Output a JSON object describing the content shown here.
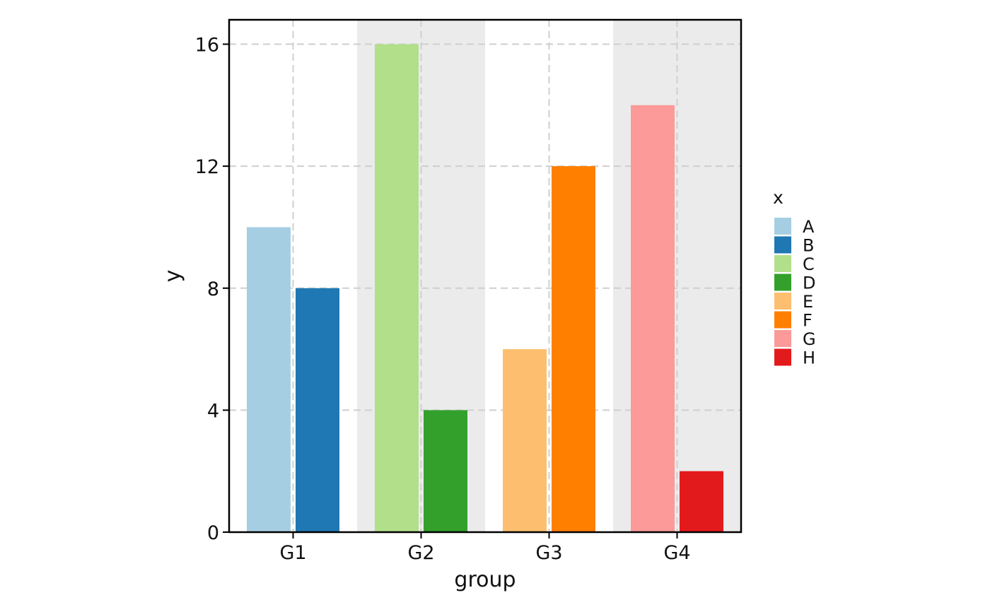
{
  "chart_data": {
    "type": "bar",
    "title": "",
    "xlabel": "group",
    "ylabel": "y",
    "ylim": [
      0,
      16.8
    ],
    "yticks": [
      0,
      4,
      8,
      12,
      16
    ],
    "grid": true,
    "legend_title": "x",
    "legend_position": "right",
    "categories": [
      "G1",
      "G2",
      "G3",
      "G4"
    ],
    "shaded_categories": [
      "G2",
      "G4"
    ],
    "shade_color": "#ebebeb",
    "bars": [
      {
        "group": "G1",
        "x": "A",
        "value": 10,
        "color": "#a6cee3"
      },
      {
        "group": "G1",
        "x": "B",
        "value": 8,
        "color": "#1f78b4"
      },
      {
        "group": "G2",
        "x": "C",
        "value": 16,
        "color": "#b2df8a"
      },
      {
        "group": "G2",
        "x": "D",
        "value": 4,
        "color": "#33a02c"
      },
      {
        "group": "G3",
        "x": "E",
        "value": 6,
        "color": "#fdbf6f"
      },
      {
        "group": "G3",
        "x": "F",
        "value": 12,
        "color": "#ff7f00"
      },
      {
        "group": "G4",
        "x": "G",
        "value": 14,
        "color": "#fb9a99"
      },
      {
        "group": "G4",
        "x": "H",
        "value": 2,
        "color": "#e31a1c"
      }
    ],
    "legend": [
      {
        "label": "A",
        "color": "#a6cee3"
      },
      {
        "label": "B",
        "color": "#1f78b4"
      },
      {
        "label": "C",
        "color": "#b2df8a"
      },
      {
        "label": "D",
        "color": "#33a02c"
      },
      {
        "label": "E",
        "color": "#fdbf6f"
      },
      {
        "label": "F",
        "color": "#ff7f00"
      },
      {
        "label": "G",
        "color": "#fb9a99"
      },
      {
        "label": "H",
        "color": "#e31a1c"
      }
    ]
  }
}
